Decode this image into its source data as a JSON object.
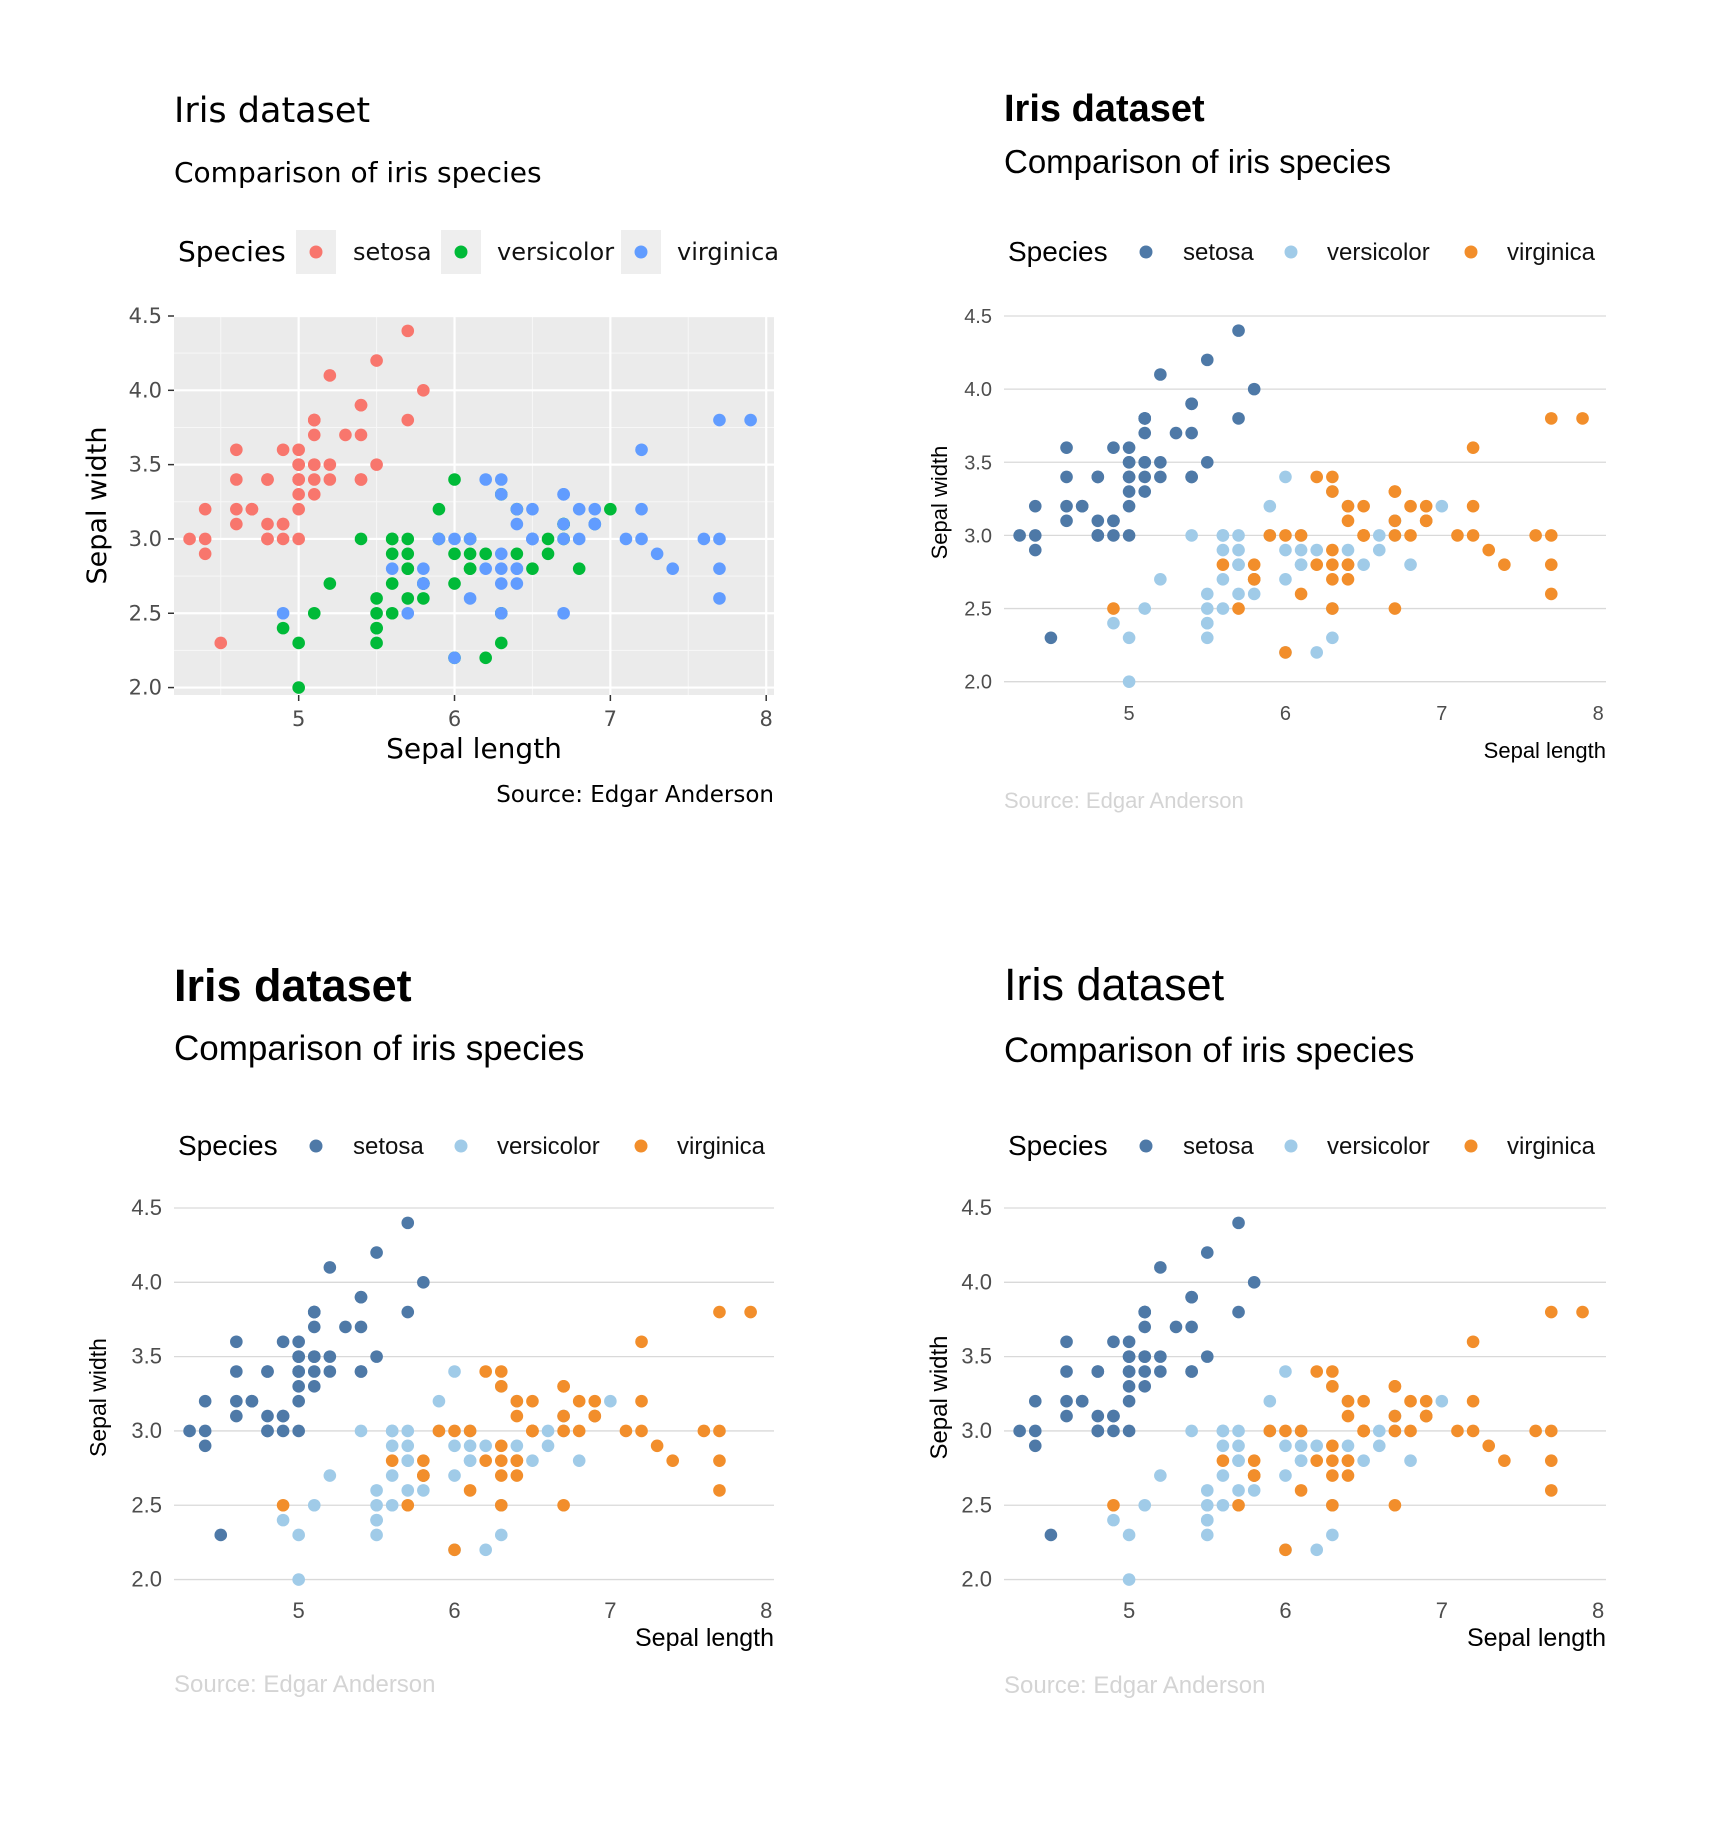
{
  "chart_data": [
    {
      "type": "scatter",
      "title": "Iris dataset",
      "subtitle": "Comparison of iris species",
      "xlabel": "Sepal length",
      "ylabel": "Sepal width",
      "caption": "Source: Edgar Anderson",
      "legend_title": "Species",
      "xlim": [
        4.2,
        8.05
      ],
      "ylim": [
        1.95,
        4.5
      ],
      "x_ticks": [
        "5",
        "6",
        "7",
        "8"
      ],
      "y_ticks": [
        "2.0",
        "2.5",
        "3.0",
        "3.5",
        "4.0",
        "4.5"
      ],
      "grid": true,
      "legend_position": "top",
      "colors": [
        "#F8766D",
        "#00BA38",
        "#619CFF"
      ],
      "series": [
        {
          "name": "setosa",
          "points": [
            [
              5.1,
              3.5
            ],
            [
              4.9,
              3.0
            ],
            [
              4.7,
              3.2
            ],
            [
              4.6,
              3.1
            ],
            [
              5.0,
              3.6
            ],
            [
              5.4,
              3.9
            ],
            [
              4.6,
              3.4
            ],
            [
              5.0,
              3.4
            ],
            [
              4.4,
              2.9
            ],
            [
              4.9,
              3.1
            ],
            [
              5.4,
              3.7
            ],
            [
              4.8,
              3.4
            ],
            [
              4.8,
              3.0
            ],
            [
              4.3,
              3.0
            ],
            [
              5.8,
              4.0
            ],
            [
              5.7,
              4.4
            ],
            [
              5.4,
              3.9
            ],
            [
              5.1,
              3.5
            ],
            [
              5.7,
              3.8
            ],
            [
              5.1,
              3.8
            ],
            [
              5.4,
              3.4
            ],
            [
              5.1,
              3.7
            ],
            [
              4.6,
              3.6
            ],
            [
              5.1,
              3.3
            ],
            [
              4.8,
              3.4
            ],
            [
              5.0,
              3.0
            ],
            [
              5.0,
              3.4
            ],
            [
              5.2,
              3.5
            ],
            [
              5.2,
              3.4
            ],
            [
              4.7,
              3.2
            ],
            [
              4.8,
              3.1
            ],
            [
              5.4,
              3.4
            ],
            [
              5.2,
              4.1
            ],
            [
              5.5,
              4.2
            ],
            [
              4.9,
              3.1
            ],
            [
              5.0,
              3.2
            ],
            [
              5.5,
              3.5
            ],
            [
              4.9,
              3.6
            ],
            [
              4.4,
              3.0
            ],
            [
              5.1,
              3.4
            ],
            [
              5.0,
              3.5
            ],
            [
              4.5,
              2.3
            ],
            [
              4.4,
              3.2
            ],
            [
              5.0,
              3.5
            ],
            [
              5.1,
              3.8
            ],
            [
              4.8,
              3.0
            ],
            [
              5.1,
              3.8
            ],
            [
              4.6,
              3.2
            ],
            [
              5.3,
              3.7
            ],
            [
              5.0,
              3.3
            ]
          ]
        },
        {
          "name": "versicolor",
          "points": [
            [
              7.0,
              3.2
            ],
            [
              6.4,
              3.2
            ],
            [
              6.9,
              3.1
            ],
            [
              5.5,
              2.3
            ],
            [
              6.5,
              2.8
            ],
            [
              5.7,
              2.8
            ],
            [
              6.3,
              3.3
            ],
            [
              4.9,
              2.4
            ],
            [
              6.6,
              2.9
            ],
            [
              5.2,
              2.7
            ],
            [
              5.0,
              2.0
            ],
            [
              5.9,
              3.0
            ],
            [
              6.0,
              2.2
            ],
            [
              6.1,
              2.9
            ],
            [
              5.6,
              2.9
            ],
            [
              6.7,
              3.1
            ],
            [
              5.6,
              3.0
            ],
            [
              5.8,
              2.7
            ],
            [
              6.2,
              2.2
            ],
            [
              5.6,
              2.5
            ],
            [
              5.9,
              3.2
            ],
            [
              6.1,
              2.8
            ],
            [
              6.3,
              2.5
            ],
            [
              6.1,
              2.8
            ],
            [
              6.4,
              2.9
            ],
            [
              6.6,
              3.0
            ],
            [
              6.8,
              2.8
            ],
            [
              6.7,
              3.0
            ],
            [
              6.0,
              2.9
            ],
            [
              5.7,
              2.6
            ],
            [
              5.5,
              2.4
            ],
            [
              5.5,
              2.4
            ],
            [
              5.8,
              2.7
            ],
            [
              6.0,
              2.7
            ],
            [
              5.4,
              3.0
            ],
            [
              6.0,
              3.4
            ],
            [
              6.7,
              3.1
            ],
            [
              6.3,
              2.3
            ],
            [
              5.6,
              3.0
            ],
            [
              5.5,
              2.5
            ],
            [
              5.5,
              2.6
            ],
            [
              6.1,
              3.0
            ],
            [
              5.8,
              2.6
            ],
            [
              5.0,
              2.3
            ],
            [
              5.6,
              2.7
            ],
            [
              5.7,
              3.0
            ],
            [
              5.7,
              2.9
            ],
            [
              6.2,
              2.9
            ],
            [
              5.1,
              2.5
            ],
            [
              5.7,
              2.8
            ]
          ]
        },
        {
          "name": "virginica",
          "points": [
            [
              6.3,
              3.3
            ],
            [
              5.8,
              2.7
            ],
            [
              7.1,
              3.0
            ],
            [
              6.3,
              2.9
            ],
            [
              6.5,
              3.0
            ],
            [
              7.6,
              3.0
            ],
            [
              4.9,
              2.5
            ],
            [
              7.3,
              2.9
            ],
            [
              6.7,
              2.5
            ],
            [
              7.2,
              3.6
            ],
            [
              6.5,
              3.2
            ],
            [
              6.4,
              2.7
            ],
            [
              6.8,
              3.0
            ],
            [
              5.7,
              2.5
            ],
            [
              5.8,
              2.8
            ],
            [
              6.4,
              3.2
            ],
            [
              6.5,
              3.0
            ],
            [
              7.7,
              3.8
            ],
            [
              7.7,
              2.6
            ],
            [
              6.0,
              2.2
            ],
            [
              6.9,
              3.2
            ],
            [
              5.6,
              2.8
            ],
            [
              7.7,
              2.8
            ],
            [
              6.3,
              2.7
            ],
            [
              6.7,
              3.3
            ],
            [
              7.2,
              3.2
            ],
            [
              6.2,
              2.8
            ],
            [
              6.1,
              3.0
            ],
            [
              6.4,
              2.8
            ],
            [
              7.2,
              3.0
            ],
            [
              7.4,
              2.8
            ],
            [
              7.9,
              3.8
            ],
            [
              6.4,
              2.8
            ],
            [
              6.3,
              2.8
            ],
            [
              6.1,
              2.6
            ],
            [
              7.7,
              3.0
            ],
            [
              6.3,
              3.4
            ],
            [
              6.4,
              3.1
            ],
            [
              6.0,
              3.0
            ],
            [
              6.9,
              3.1
            ],
            [
              6.7,
              3.1
            ],
            [
              6.9,
              3.1
            ],
            [
              5.8,
              2.7
            ],
            [
              6.8,
              3.2
            ],
            [
              6.7,
              3.3
            ],
            [
              6.7,
              3.0
            ],
            [
              6.3,
              2.5
            ],
            [
              6.5,
              3.0
            ],
            [
              6.2,
              3.4
            ],
            [
              5.9,
              3.0
            ]
          ]
        }
      ]
    },
    {
      "type": "scatter",
      "title": "Iris dataset",
      "subtitle": "Comparison of iris species",
      "xlabel": "Sepal length",
      "ylabel": "Sepal width",
      "caption": "Source: Edgar Anderson",
      "legend_title": "Species",
      "series_names": [
        "setosa",
        "versicolor",
        "virginica"
      ],
      "colors": [
        "#4E79A7",
        "#A0CBE8",
        "#F28E2B"
      ],
      "same_points_as_chart": 0,
      "grid": "horizontal",
      "legend_position": "top"
    },
    {
      "type": "scatter",
      "title": "Iris dataset",
      "subtitle": "Comparison of iris species",
      "xlabel": "Sepal length",
      "ylabel": "Sepal width",
      "caption": "Source: Edgar Anderson",
      "legend_title": "Species",
      "series_names": [
        "setosa",
        "versicolor",
        "virginica"
      ],
      "colors": [
        "#4E79A7",
        "#A0CBE8",
        "#F28E2B"
      ],
      "same_points_as_chart": 0,
      "grid": "horizontal",
      "legend_position": "top"
    },
    {
      "type": "scatter",
      "title": "Iris dataset",
      "subtitle": "Comparison of iris species",
      "xlabel": "Sepal length",
      "ylabel": "Sepal width",
      "caption": "Source: Edgar Anderson",
      "legend_title": "Species",
      "series_names": [
        "setosa",
        "versicolor",
        "virginica"
      ],
      "colors": [
        "#4E79A7",
        "#A0CBE8",
        "#F28E2B"
      ],
      "same_points_as_chart": 0,
      "grid": "horizontal",
      "legend_position": "top"
    }
  ]
}
